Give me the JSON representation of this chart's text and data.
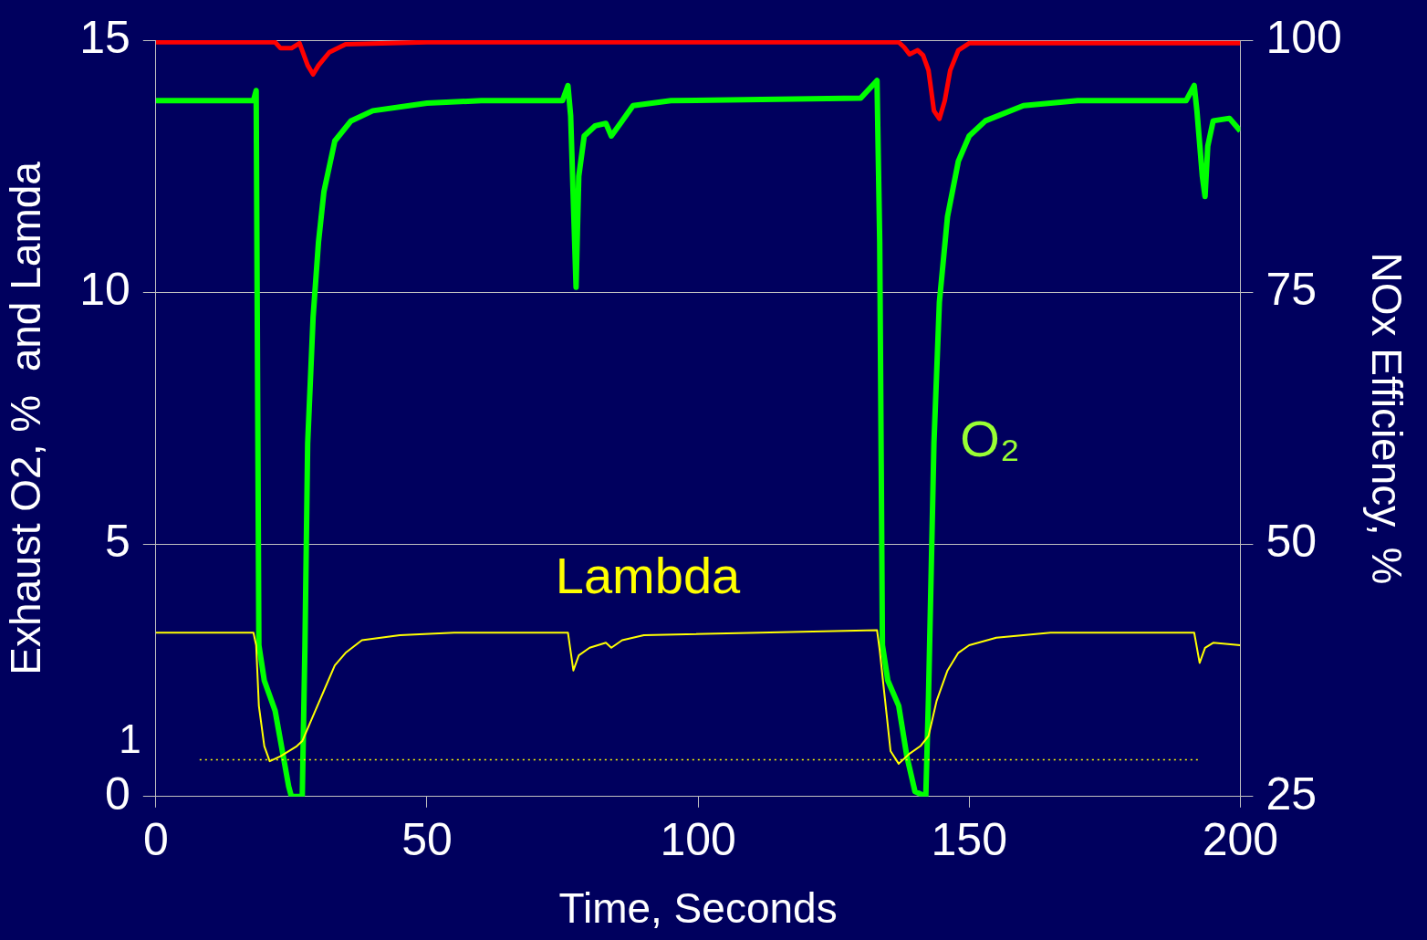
{
  "chart_data": {
    "type": "line",
    "xlabel": "Time, Seconds",
    "ylabel": "Exhaust O2, %  and Lamda",
    "y2label": "NOx Efficiency, %",
    "xlim": [
      0,
      200
    ],
    "xticks": [
      0,
      50,
      100,
      150,
      200
    ],
    "ylim": [
      0,
      15
    ],
    "yticks": [
      0,
      5,
      10,
      15
    ],
    "y2lim": [
      25,
      100
    ],
    "y2ticks": [
      25,
      50,
      75,
      100
    ],
    "grid": "y",
    "legend": false,
    "marker": "none",
    "line_style": "solid",
    "ref_lines": [
      {
        "axis": "y",
        "value": 0.73,
        "label": "1",
        "color": "#ffff00",
        "line_style": "dotted"
      }
    ],
    "series": [
      {
        "name": "O₂",
        "color": "#00ff00",
        "x": [
          0,
          18,
          18.5,
          19,
          20,
          22,
          23.5,
          24.5,
          25,
          27,
          27.5,
          28,
          29,
          30,
          31,
          33,
          36,
          40,
          50,
          60,
          75,
          76,
          76.5,
          77.5,
          78,
          79,
          81,
          83,
          84,
          86,
          88,
          95,
          130,
          133,
          133.5,
          134,
          135,
          137,
          138.5,
          140,
          142,
          142.5,
          143.5,
          144.5,
          146,
          148,
          150,
          153,
          160,
          170,
          190,
          191.5,
          192,
          193,
          193.5,
          194,
          195,
          198,
          200
        ],
        "values": [
          13.8,
          13.8,
          14.0,
          3,
          2.3,
          1.7,
          0.8,
          0.2,
          0,
          0,
          3,
          7,
          9.5,
          11,
          12,
          13,
          13.4,
          13.6,
          13.75,
          13.8,
          13.8,
          14.1,
          13.5,
          10.1,
          12.3,
          13.1,
          13.3,
          13.35,
          13.1,
          13.4,
          13.7,
          13.8,
          13.85,
          14.2,
          11,
          3,
          2.3,
          1.8,
          0.8,
          0.1,
          0,
          2,
          7,
          9.8,
          11.5,
          12.6,
          13.1,
          13.4,
          13.7,
          13.8,
          13.8,
          14.1,
          13.6,
          12.3,
          11.9,
          12.9,
          13.4,
          13.45,
          13.2
        ]
      },
      {
        "name": "Lambda",
        "color": "#ffff00",
        "x": [
          0,
          18,
          18.5,
          19,
          20,
          21,
          23,
          26,
          27,
          29,
          31,
          33,
          35,
          38,
          45,
          55,
          76,
          77,
          78,
          80,
          83,
          84,
          86,
          90,
          133,
          133.5,
          134.5,
          135.5,
          137,
          139,
          141,
          142.5,
          144,
          146,
          148,
          150,
          155,
          165,
          191.5,
          192.5,
          193.5,
          195,
          200
        ],
        "values": [
          3.25,
          3.25,
          3.0,
          1.8,
          1.0,
          0.7,
          0.8,
          1.0,
          1.1,
          1.6,
          2.1,
          2.6,
          2.85,
          3.1,
          3.2,
          3.25,
          3.25,
          2.5,
          2.8,
          2.95,
          3.05,
          2.95,
          3.1,
          3.2,
          3.3,
          2.9,
          1.9,
          0.9,
          0.65,
          0.85,
          1.0,
          1.2,
          1.9,
          2.5,
          2.85,
          3.0,
          3.15,
          3.25,
          3.25,
          2.65,
          2.95,
          3.05,
          3.0
        ]
      },
      {
        "color": "#ff0000",
        "axis": "y2",
        "x": [
          0,
          22,
          23,
          25,
          26.5,
          28,
          29,
          30,
          32,
          35,
          50,
          137,
          138,
          139,
          140.5,
          141.5,
          142.5,
          143.5,
          144.5,
          145.5,
          146.5,
          148,
          150,
          200
        ],
        "values": [
          99.8,
          99.8,
          99.2,
          99.2,
          99.7,
          97.5,
          96.6,
          97.5,
          98.8,
          99.6,
          99.8,
          99.8,
          99.3,
          98.6,
          99.0,
          98.5,
          97,
          93,
          92.2,
          94,
          97,
          99,
          99.7,
          99.7
        ]
      }
    ]
  }
}
